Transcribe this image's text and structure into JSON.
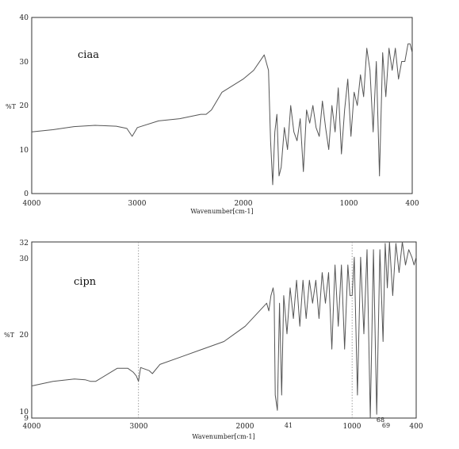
{
  "chart_data": [
    {
      "type": "line",
      "annotation": "ciaa",
      "xlabel": "Wavenumber[cm-1]",
      "ylabel": "%T",
      "xlim": [
        4000,
        400
      ],
      "ylim": [
        0,
        40
      ],
      "xticks": [
        "4000",
        "3000",
        "2000",
        "1000",
        "400"
      ],
      "yticks": [
        "0",
        "10",
        "20",
        "30",
        "40"
      ],
      "grid": false,
      "series": [
        {
          "x": [
            4000,
            3800,
            3600,
            3400,
            3200,
            3100,
            3050,
            3000,
            2800,
            2600,
            2400,
            2350,
            2300,
            2200,
            2000,
            1900,
            1800,
            1760,
            1740,
            1720,
            1700,
            1680,
            1660,
            1640,
            1610,
            1580,
            1550,
            1520,
            1490,
            1460,
            1430,
            1400,
            1370,
            1340,
            1310,
            1280,
            1250,
            1220,
            1190,
            1160,
            1130,
            1100,
            1070,
            1040,
            1010,
            980,
            950,
            920,
            890,
            860,
            830,
            800,
            770,
            740,
            710,
            680,
            650,
            620,
            590,
            560,
            530,
            500,
            470,
            440,
            420,
            400
          ],
          "y": [
            14,
            14.5,
            15.2,
            15.5,
            15.3,
            14.8,
            13,
            15,
            16.5,
            17,
            18,
            18,
            19,
            23,
            26,
            28,
            31.5,
            28,
            12,
            2,
            14,
            18,
            4,
            6,
            15,
            10,
            20,
            14,
            12,
            17,
            5,
            19,
            16,
            20,
            15,
            13,
            21,
            15,
            10,
            20,
            14,
            24,
            9,
            19,
            26,
            13,
            23,
            20,
            27,
            22,
            33,
            28,
            14,
            30,
            4,
            32,
            22,
            33,
            28,
            33,
            26,
            30,
            30,
            34,
            34,
            32
          ]
        }
      ]
    },
    {
      "type": "line",
      "annotation": "cipn",
      "xlabel": "Wavenumber[cm-1]",
      "ylabel": "%T",
      "xlim": [
        4000,
        400
      ],
      "ylim": [
        9,
        32
      ],
      "xticks": [
        "4000",
        "3000",
        "2000",
        "1000",
        "400"
      ],
      "yticks": [
        "9",
        "10",
        "20",
        "30",
        "32"
      ],
      "grid": false,
      "reference_lines": [
        3000,
        1000
      ],
      "peak_labels": [
        "41",
        "68",
        "69"
      ],
      "series": [
        {
          "x": [
            4000,
            3800,
            3600,
            3500,
            3450,
            3400,
            3200,
            3100,
            3050,
            3020,
            3000,
            2980,
            2900,
            2870,
            2800,
            2600,
            2400,
            2200,
            2100,
            2000,
            1900,
            1800,
            1780,
            1760,
            1740,
            1730,
            1720,
            1700,
            1680,
            1660,
            1640,
            1610,
            1580,
            1550,
            1520,
            1490,
            1460,
            1430,
            1400,
            1370,
            1340,
            1310,
            1280,
            1250,
            1220,
            1190,
            1160,
            1130,
            1100,
            1070,
            1040,
            1020,
            1000,
            980,
            950,
            920,
            890,
            860,
            830,
            800,
            770,
            740,
            710,
            690,
            670,
            650,
            620,
            590,
            560,
            530,
            500,
            470,
            440,
            420,
            400
          ],
          "y": [
            13.2,
            13.8,
            14.1,
            14,
            13.8,
            13.8,
            15.5,
            15.5,
            15,
            14.5,
            13.8,
            15.6,
            15.2,
            14.8,
            16,
            17,
            18,
            19,
            20,
            21,
            22.5,
            24,
            23,
            25,
            26,
            25,
            12,
            10,
            24,
            12,
            25,
            20,
            26,
            22,
            27,
            21,
            27,
            22,
            27,
            24,
            27,
            22,
            28,
            24,
            28,
            18,
            29,
            21,
            29,
            18,
            29,
            25,
            25,
            30,
            12,
            30,
            20,
            31,
            9,
            31,
            9.5,
            31,
            19,
            31.8,
            26,
            32,
            25,
            31.8,
            28,
            32,
            29,
            31,
            30,
            29,
            30
          ]
        }
      ]
    }
  ]
}
